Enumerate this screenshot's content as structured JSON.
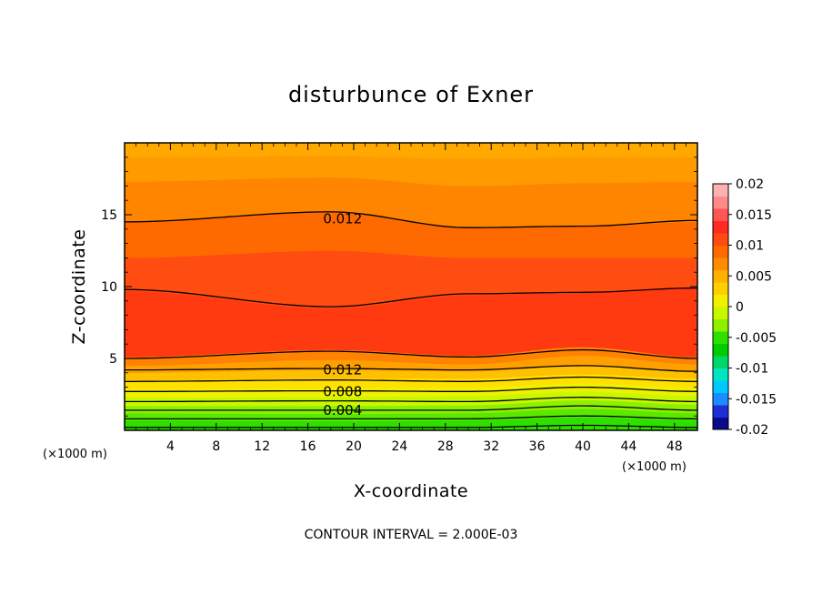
{
  "chart_data": {
    "type": "contour",
    "title": "disturbunce of Exner",
    "xlabel": "X-coordinate",
    "ylabel": "Z-coordinate",
    "x_unit": "(×1000 m)",
    "y_unit": "(×1000 m)",
    "xlim": [
      0,
      50
    ],
    "ylim": [
      0,
      20
    ],
    "x_ticks": [
      4,
      8,
      12,
      16,
      20,
      24,
      28,
      32,
      36,
      40,
      44,
      48
    ],
    "y_ticks": [
      5,
      10,
      15
    ],
    "x_tick_labels": [
      "4",
      "8",
      "12",
      "16",
      "20",
      "24",
      "28",
      "32",
      "36",
      "40",
      "44",
      "48"
    ],
    "y_tick_labels": [
      "5",
      "10",
      "15"
    ],
    "note": "CONTOUR INTERVAL = 2.000E-03",
    "colorbar": {
      "min": -0.02,
      "max": 0.02,
      "labels": [
        "0.02",
        "0.015",
        "0.01",
        "0.005",
        "0",
        "-0.005",
        "-0.01",
        "-0.015",
        "-0.02"
      ],
      "colors": [
        "#0a0a8c",
        "#1c2fd4",
        "#1a8cff",
        "#00c8ff",
        "#00e6c0",
        "#00d86a",
        "#00cc00",
        "#2ee000",
        "#8cf000",
        "#c8f800",
        "#f0f000",
        "#ffd000",
        "#ffb000",
        "#ff8c00",
        "#ff6a00",
        "#ff4a10",
        "#ff2a20",
        "#ff5555",
        "#ff8a8a",
        "#ffb0b0"
      ]
    },
    "contour_labels": [
      {
        "text": "0.012",
        "x": 18.0,
        "z": 14.7
      },
      {
        "text": "0.012",
        "x": 18.0,
        "z": 4.2
      },
      {
        "text": "0.008",
        "x": 18.0,
        "z": 2.7
      },
      {
        "text": "0.004",
        "x": 18.0,
        "z": 1.4
      }
    ],
    "bands": [
      {
        "z": [
          0.0,
          0.0,
          0.0,
          0.0,
          0.0
        ],
        "color": "#2ee000"
      },
      {
        "z": [
          0.7,
          0.65,
          0.7,
          0.9,
          0.7
        ],
        "color": "#5ae800"
      },
      {
        "z": [
          1.2,
          1.15,
          1.2,
          1.5,
          1.2
        ],
        "color": "#8cf000"
      },
      {
        "z": [
          1.7,
          1.7,
          1.75,
          2.1,
          1.8
        ],
        "color": "#c8f800"
      },
      {
        "z": [
          2.3,
          2.3,
          2.4,
          2.7,
          2.4
        ],
        "color": "#f0f000"
      },
      {
        "z": [
          2.9,
          2.95,
          3.0,
          3.3,
          3.0
        ],
        "color": "#ffe000"
      },
      {
        "z": [
          3.5,
          3.6,
          3.6,
          3.9,
          3.6
        ],
        "color": "#ffc000"
      },
      {
        "z": [
          4.0,
          4.2,
          4.1,
          4.5,
          4.1
        ],
        "color": "#ffa000"
      },
      {
        "z": [
          4.5,
          4.9,
          4.6,
          5.2,
          4.6
        ],
        "color": "#ff8200"
      },
      {
        "z": [
          5.1,
          5.6,
          5.2,
          5.8,
          5.1
        ],
        "color": "#ff3a10"
      },
      {
        "z": [
          9.7,
          8.5,
          9.4,
          9.6,
          9.9
        ],
        "color": "#ff4c10"
      },
      {
        "z": [
          12.0,
          12.5,
          12.0,
          12.0,
          12.0
        ],
        "color": "#ff6a00"
      },
      {
        "z": [
          14.5,
          15.2,
          14.1,
          14.2,
          14.5
        ],
        "color": "#ff8400"
      },
      {
        "z": [
          17.3,
          17.6,
          17.0,
          17.2,
          17.3
        ],
        "color": "#ff9a00"
      },
      {
        "z": [
          19.0,
          19.1,
          18.9,
          19.0,
          19.0
        ],
        "color": "#ffa800"
      }
    ],
    "band_x": [
      0,
      18,
      30,
      40,
      50
    ],
    "contours": [
      {
        "z": [
          14.5,
          15.2,
          14.1,
          14.2,
          14.6
        ]
      },
      {
        "z": [
          9.8,
          8.6,
          9.5,
          9.6,
          9.9
        ]
      },
      {
        "z": [
          5.0,
          5.5,
          5.1,
          5.6,
          5.0
        ]
      },
      {
        "z": [
          4.2,
          4.3,
          4.2,
          4.5,
          4.1
        ]
      },
      {
        "z": [
          3.4,
          3.5,
          3.4,
          3.7,
          3.4
        ]
      },
      {
        "z": [
          2.7,
          2.75,
          2.7,
          3.0,
          2.7
        ]
      },
      {
        "z": [
          2.0,
          2.05,
          2.0,
          2.3,
          2.0
        ]
      },
      {
        "z": [
          1.4,
          1.4,
          1.4,
          1.7,
          1.4
        ]
      },
      {
        "z": [
          0.8,
          0.8,
          0.8,
          1.0,
          0.8
        ]
      },
      {
        "z": [
          0.2,
          0.2,
          0.2,
          0.35,
          0.2
        ]
      }
    ]
  }
}
